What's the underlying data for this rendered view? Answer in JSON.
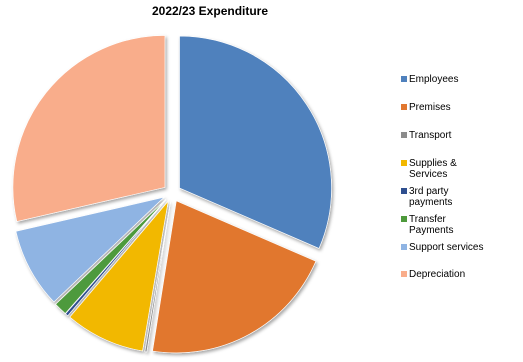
{
  "chart_data": {
    "type": "pie",
    "title": "2022/23 Expenditure",
    "legend_position": "right",
    "exploded": true,
    "series": [
      {
        "name": "Employees",
        "value": 31.5,
        "color": "#4f81bd"
      },
      {
        "name": "Premises",
        "value": 21.0,
        "color": "#e1772f"
      },
      {
        "name": "Transport",
        "value": 0.2,
        "color": "#8c8c8c"
      },
      {
        "name": "Supplies &\nServices",
        "value": 8.5,
        "color": "#f2b800"
      },
      {
        "name": "3rd party\npayments",
        "value": 0.3,
        "color": "#2f4f8f"
      },
      {
        "name": "Transfer\nPayments",
        "value": 1.4,
        "color": "#4e9a3c"
      },
      {
        "name": "Support services",
        "value": 8.5,
        "color": "#8fb4e3"
      },
      {
        "name": "Depreciation",
        "value": 28.6,
        "color": "#f9ad8b"
      }
    ]
  }
}
